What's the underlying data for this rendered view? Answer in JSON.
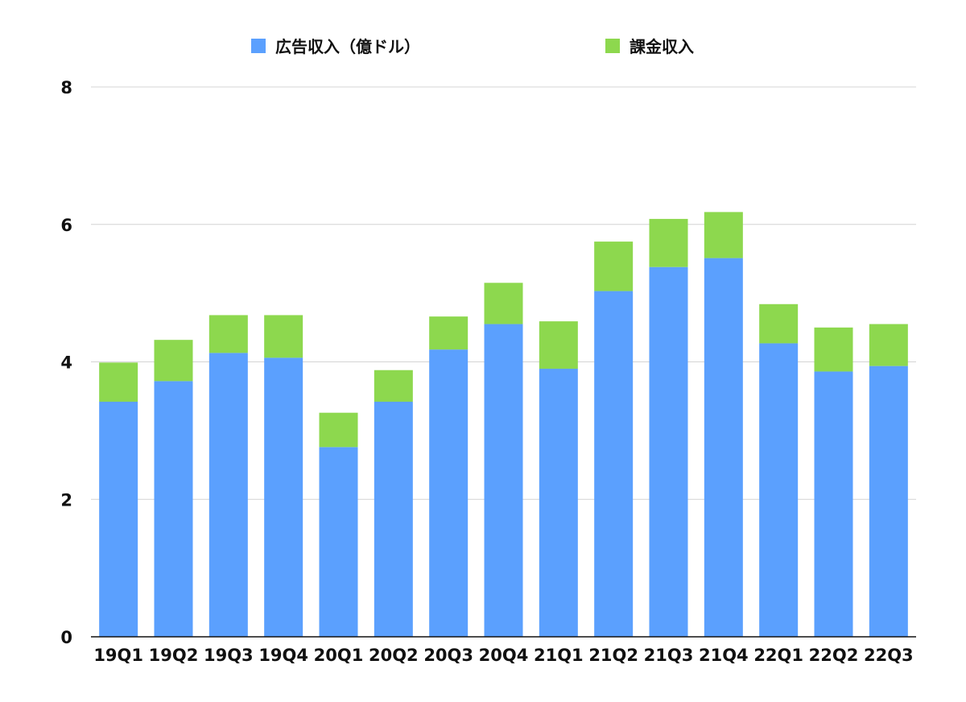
{
  "chart_data": {
    "type": "bar",
    "stacked": true,
    "title": "",
    "xlabel": "",
    "ylabel": "",
    "categories": [
      "19Q1",
      "19Q2",
      "19Q3",
      "19Q4",
      "20Q1",
      "20Q2",
      "20Q3",
      "20Q4",
      "21Q1",
      "21Q2",
      "21Q3",
      "21Q4",
      "22Q1",
      "22Q2",
      "22Q3"
    ],
    "series": [
      {
        "name": "広告収入（億ドル）",
        "color": "#5BA0FE",
        "values": [
          3.42,
          3.72,
          4.13,
          4.06,
          2.76,
          3.42,
          4.18,
          4.55,
          3.9,
          5.03,
          5.38,
          5.51,
          4.27,
          3.86,
          3.94
        ]
      },
      {
        "name": "課金収入",
        "color": "#8DD84E",
        "values": [
          0.57,
          0.6,
          0.55,
          0.62,
          0.5,
          0.46,
          0.48,
          0.6,
          0.69,
          0.72,
          0.7,
          0.67,
          0.57,
          0.64,
          0.61
        ]
      }
    ],
    "ylim": [
      0,
      8
    ],
    "yticks": [
      0,
      2,
      4,
      6,
      8
    ],
    "grid": true,
    "legend_position": "top"
  }
}
